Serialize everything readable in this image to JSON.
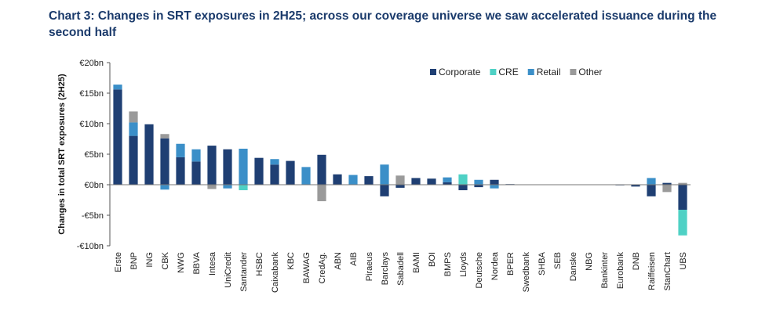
{
  "title": "Chart 3: Changes in SRT exposures in 2H25; across our coverage universe we saw accelerated issuance during the second half",
  "chart_data": {
    "type": "bar",
    "stacked": true,
    "title": "Chart 3: Changes in SRT exposures in 2H25; across our coverage universe we saw accelerated issuance during the second half",
    "ylabel": "Changes in total SRT exposures (2H25)",
    "xlabel": "",
    "ylim": [
      -10,
      20
    ],
    "yticks": [
      20,
      15,
      10,
      5,
      0,
      -5,
      -10
    ],
    "ytick_labels": [
      "€20bn",
      "€15bn",
      "€10bn",
      "€5bn",
      "€0bn",
      "-€5bn",
      "-€10bn"
    ],
    "legend_position": "top-right",
    "grid": false,
    "categories": [
      "Erste",
      "BNP",
      "ING",
      "CBK",
      "NWG",
      "BBVA",
      "Intesa",
      "UniCredit",
      "Santander",
      "HSBC",
      "Caixabank",
      "KBC",
      "BAWAG",
      "CredAg.",
      "ABN",
      "AIB",
      "Piraeus",
      "Barclays",
      "Sabadell",
      "BAMI",
      "BOI",
      "BMPS",
      "Lloyds",
      "Deutsche",
      "Nordea",
      "BPER",
      "Swedbank",
      "SHBA",
      "SEB",
      "Danske",
      "NBG",
      "Bankinter",
      "Eurobank",
      "DNB",
      "Raiffeisen",
      "StanChart",
      "UBS"
    ],
    "series": [
      {
        "name": "Corporate",
        "color": "#1f3f73",
        "values": [
          15.6,
          8.0,
          9.9,
          7.6,
          4.5,
          3.8,
          6.4,
          5.8,
          0,
          4.4,
          3.3,
          3.9,
          0,
          4.9,
          1.7,
          0,
          1.4,
          -1.9,
          -0.5,
          1.1,
          1.0,
          0.4,
          -0.9,
          -0.4,
          0.8,
          0.1,
          0.05,
          0.05,
          0.05,
          0.05,
          0.05,
          0.05,
          -0.1,
          -0.3,
          -1.9,
          0.3,
          -4.1
        ]
      },
      {
        "name": "CRE",
        "color": "#4fd1c5",
        "values": [
          0,
          0,
          0,
          0,
          0,
          0,
          0,
          0,
          -0.9,
          0,
          0,
          0,
          0,
          0,
          0,
          0,
          0,
          0,
          0,
          0,
          0,
          0,
          1.7,
          0,
          0,
          0,
          0,
          0,
          0,
          0,
          0,
          0,
          0,
          0,
          0,
          0,
          -4.2
        ]
      },
      {
        "name": "Retail",
        "color": "#3b8fc8",
        "values": [
          0.8,
          2.2,
          0,
          -0.8,
          2.2,
          2.0,
          0,
          -0.6,
          5.9,
          0,
          0.9,
          0,
          2.9,
          0,
          0,
          1.6,
          0,
          3.3,
          0,
          0,
          0,
          0.8,
          0,
          0.8,
          -0.6,
          0,
          0,
          0,
          0,
          0,
          0,
          0,
          0,
          0,
          1.1,
          0,
          0
        ]
      },
      {
        "name": "Other",
        "color": "#9a9a9a",
        "values": [
          0,
          1.8,
          0,
          0.7,
          0,
          0,
          -0.7,
          0,
          0,
          0,
          0,
          0,
          0,
          -2.7,
          0,
          0,
          0,
          0,
          1.5,
          0,
          0,
          0,
          0,
          0,
          0,
          0,
          0,
          0,
          0,
          0,
          0,
          0,
          0,
          0,
          0,
          -1.2,
          0.3
        ]
      }
    ]
  }
}
